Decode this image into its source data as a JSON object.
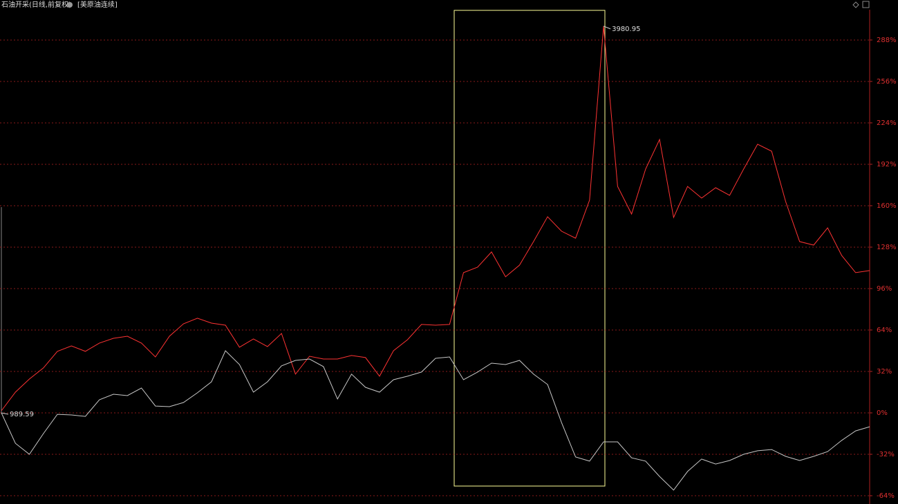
{
  "chart_data": {
    "type": "line",
    "series": [
      {
        "name": "石油开采(日线,前复权)",
        "color": "#ff3333",
        "values": [
          1.6,
          16,
          26.1,
          34.7,
          47.5,
          51.7,
          47.5,
          53.9,
          57.6,
          59.2,
          53.9,
          43.2,
          59.2,
          68.8,
          73.1,
          69.3,
          67.7,
          50.7,
          57.1,
          51.2,
          61.3,
          29.9,
          43.7,
          41.6,
          41.6,
          44.3,
          42.7,
          28.3,
          48,
          56.5,
          68.3,
          67.7,
          68.3,
          108.3,
          112.5,
          124.3,
          105.1,
          114.1,
          132.3,
          151.5,
          140.3,
          134.9,
          164.3,
          298.7,
          174.9,
          153.6,
          188.3,
          211.2,
          150.9,
          174.9,
          165.9,
          173.9,
          168,
          188.3,
          207.5,
          202.1,
          163.2,
          132.3,
          129.6,
          142.9,
          121.6,
          108.3,
          109.9
        ]
      },
      {
        "name": "[美原油连续]",
        "color": "#c8c8c8",
        "values": [
          0,
          -23.5,
          -32,
          -16,
          -1.1,
          -1.6,
          -2.7,
          10.1,
          14.4,
          13.3,
          19.2,
          5.3,
          4.8,
          8,
          15.5,
          24,
          48,
          37.3,
          16,
          24,
          36.3,
          40.5,
          41.6,
          35.7,
          10.7,
          29.9,
          19.7,
          16,
          25.6,
          28.3,
          31.5,
          42.1,
          43.2,
          25.6,
          31.5,
          38.4,
          37.3,
          40.5,
          29.9,
          21.9,
          -7.5,
          -34.1,
          -37.3,
          -22.4,
          -22.4,
          -34.7,
          -37.3,
          -49.1,
          -59.7,
          -45.3,
          -35.7,
          -39.5,
          -36.8,
          -32,
          -29.3,
          -28.3,
          -33.6,
          -36.8,
          -33.6,
          -29.9,
          -21.3,
          -13.9,
          -10.7
        ]
      }
    ],
    "annotations": [
      "3980.95",
      "989.59"
    ],
    "ylim": [
      -70.4,
      318.9
    ],
    "yticks": [
      {
        "value": -64,
        "label": "-64%"
      },
      {
        "value": -32,
        "label": "-32%"
      },
      {
        "value": 0,
        "label": "0%"
      },
      {
        "value": 32,
        "label": "32%"
      },
      {
        "value": 64,
        "label": "64%"
      },
      {
        "value": 96,
        "label": "96%"
      },
      {
        "value": 128,
        "label": "128%"
      },
      {
        "value": 160,
        "label": "160%"
      },
      {
        "value": 192,
        "label": "192%"
      },
      {
        "value": 224,
        "label": "224%"
      },
      {
        "value": 256,
        "label": "256%"
      },
      {
        "value": 288,
        "label": "288%"
      }
    ],
    "grid": true
  }
}
